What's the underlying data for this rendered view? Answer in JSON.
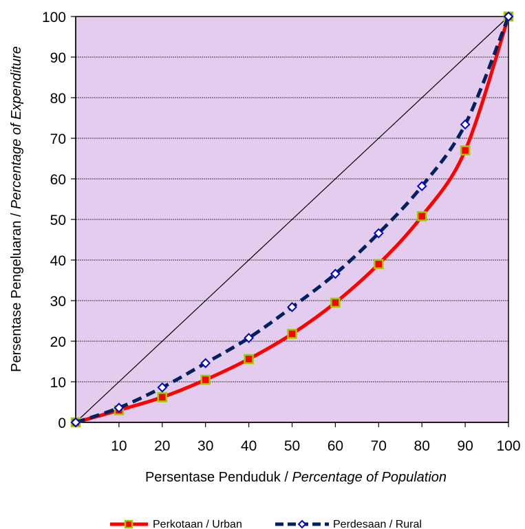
{
  "chart_data": {
    "type": "line",
    "xlabel_part1": "Persentase Penduduk",
    "xlabel_sep": " / ",
    "xlabel_part2": "Percentage of Population",
    "ylabel_part1": "Persentase Pengeluaran",
    "ylabel_sep": " / ",
    "ylabel_part2": "Percentage of Expenditure",
    "xlim": [
      0,
      100
    ],
    "ylim": [
      0,
      100
    ],
    "x_ticks": [
      10,
      20,
      30,
      40,
      50,
      60,
      70,
      80,
      90,
      100
    ],
    "y_ticks": [
      0,
      10,
      20,
      30,
      40,
      50,
      60,
      70,
      80,
      90,
      100
    ],
    "grid": "horizontal",
    "plot_background": "#E3CCEE",
    "equality_line": {
      "x": [
        0,
        100
      ],
      "y": [
        0,
        100
      ],
      "color": "#000000"
    },
    "series": [
      {
        "name": "Perkotaan / Urban",
        "color": "#FF0000",
        "marker_color": "#99CC00",
        "x": [
          0,
          10,
          20,
          30,
          40,
          50,
          60,
          70,
          80,
          90,
          100
        ],
        "y": [
          0,
          3,
          6.2,
          10.5,
          15.6,
          21.8,
          29.5,
          39,
          50.8,
          67,
          100
        ]
      },
      {
        "name": "Perdesaan / Rural",
        "color": "#002060",
        "marker_color": "#0000CC",
        "x": [
          0,
          10,
          20,
          30,
          40,
          50,
          60,
          70,
          80,
          90,
          100
        ],
        "y": [
          0,
          3.6,
          8.6,
          14.6,
          20.8,
          28.4,
          36.6,
          46.6,
          58.2,
          73.4,
          100
        ]
      }
    ],
    "legend": "bottom"
  }
}
